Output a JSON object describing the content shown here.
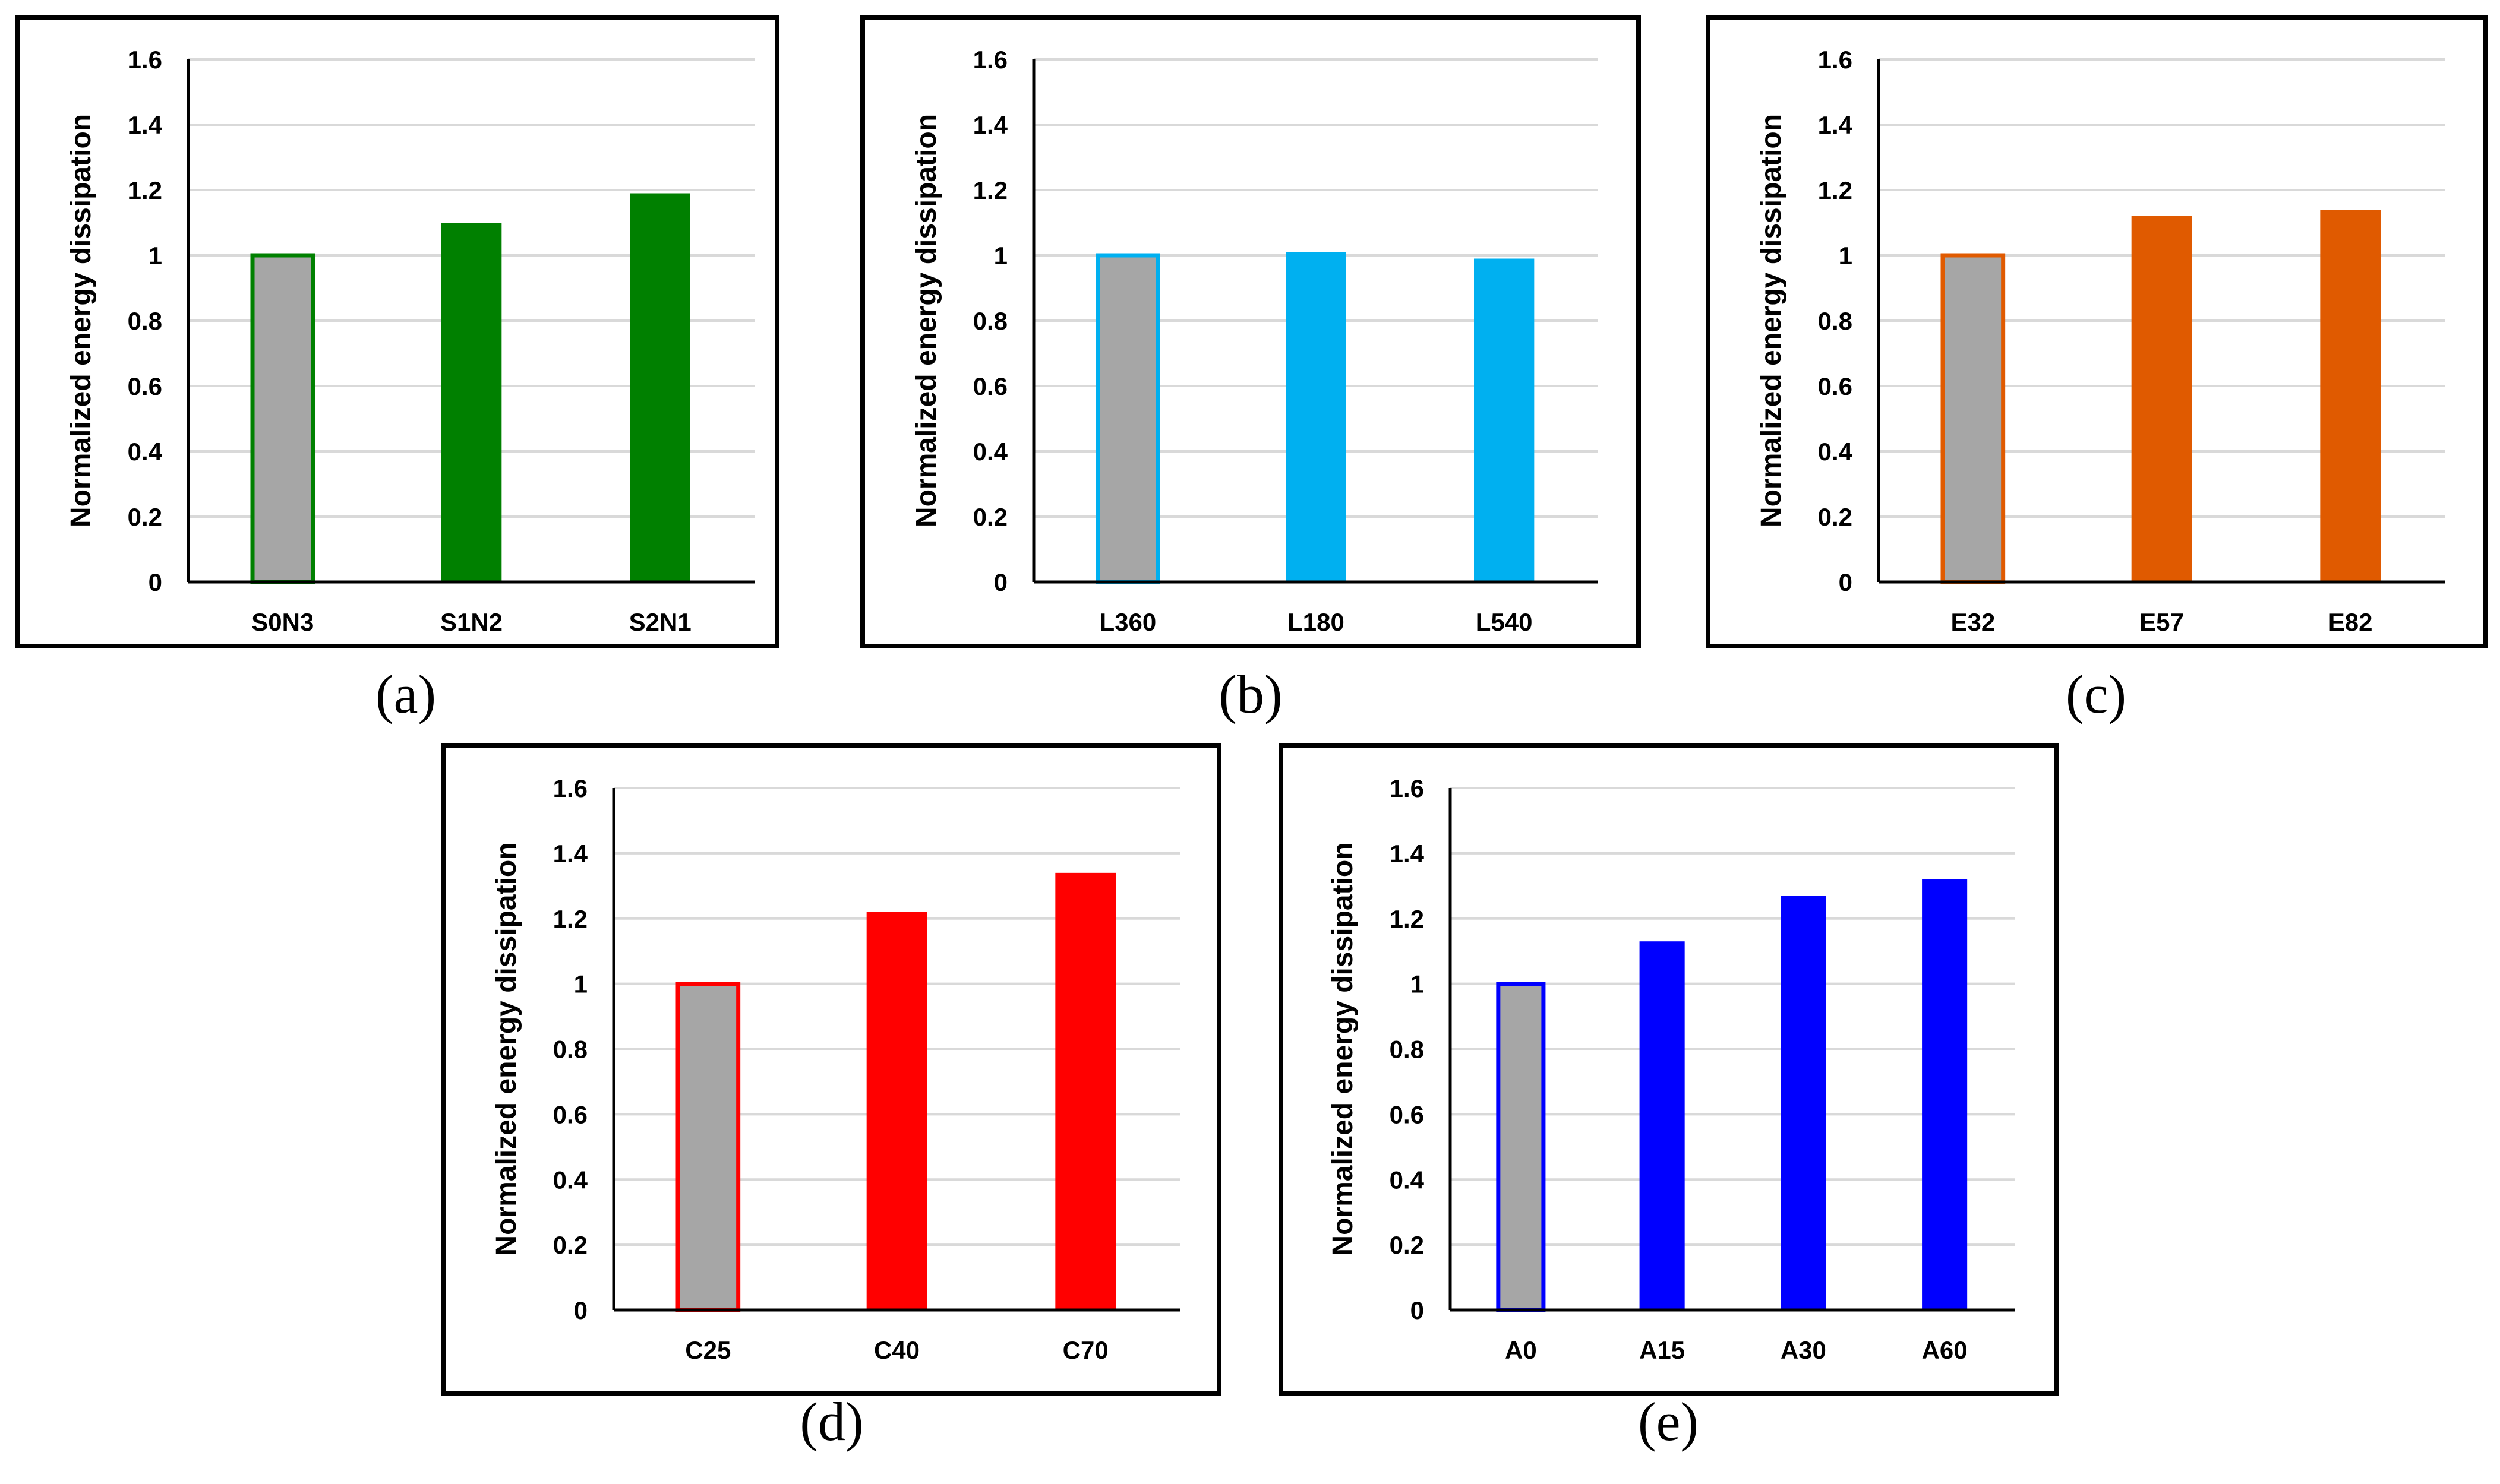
{
  "chart_data": [
    {
      "id": "a",
      "type": "bar",
      "caption": "(a)",
      "ylabel": "Normalized energy dissipation",
      "ylim": [
        0,
        1.6
      ],
      "yticks": [
        "0",
        "0.2",
        "0.4",
        "0.6",
        "0.8",
        "1",
        "1.2",
        "1.4",
        "1.6"
      ],
      "grid": true,
      "categories": [
        "S0N3",
        "S1N2",
        "S2N1"
      ],
      "values": [
        1.0,
        1.1,
        1.19
      ],
      "baseline_fill": "#a6a6a6",
      "color": "#008000"
    },
    {
      "id": "b",
      "type": "bar",
      "caption": "(b)",
      "ylabel": "Normalized energy dissipation",
      "ylim": [
        0,
        1.6
      ],
      "yticks": [
        "0",
        "0.2",
        "0.4",
        "0.6",
        "0.8",
        "1",
        "1.2",
        "1.4",
        "1.6"
      ],
      "grid": true,
      "categories": [
        "L360",
        "L180",
        "L540"
      ],
      "values": [
        1.0,
        1.01,
        0.99
      ],
      "baseline_fill": "#a6a6a6",
      "color": "#00b0f0"
    },
    {
      "id": "c",
      "type": "bar",
      "caption": "(c)",
      "ylabel": "Normalized energy dissipation",
      "ylim": [
        0,
        1.6
      ],
      "yticks": [
        "0",
        "0.2",
        "0.4",
        "0.6",
        "0.8",
        "1",
        "1.2",
        "1.4",
        "1.6"
      ],
      "grid": true,
      "categories": [
        "E32",
        "E57",
        "E82"
      ],
      "values": [
        1.0,
        1.12,
        1.14
      ],
      "baseline_fill": "#a6a6a6",
      "color": "#e05a00"
    },
    {
      "id": "d",
      "type": "bar",
      "caption": "(d)",
      "ylabel": "Normalized energy dissipation",
      "ylim": [
        0,
        1.6
      ],
      "yticks": [
        "0",
        "0.2",
        "0.4",
        "0.6",
        "0.8",
        "1",
        "1.2",
        "1.4",
        "1.6"
      ],
      "grid": true,
      "categories": [
        "C25",
        "C40",
        "C70"
      ],
      "values": [
        1.0,
        1.22,
        1.34
      ],
      "baseline_fill": "#a6a6a6",
      "color": "#ff0000"
    },
    {
      "id": "e",
      "type": "bar",
      "caption": "(e)",
      "ylabel": "Normalized energy dissipation",
      "ylim": [
        0,
        1.6
      ],
      "yticks": [
        "0",
        "0.2",
        "0.4",
        "0.6",
        "0.8",
        "1",
        "1.2",
        "1.4",
        "1.6"
      ],
      "grid": true,
      "categories": [
        "A0",
        "A15",
        "A30",
        "A60"
      ],
      "values": [
        1.0,
        1.13,
        1.27,
        1.32
      ],
      "baseline_fill": "#a6a6a6",
      "color": "#0000ff"
    }
  ]
}
